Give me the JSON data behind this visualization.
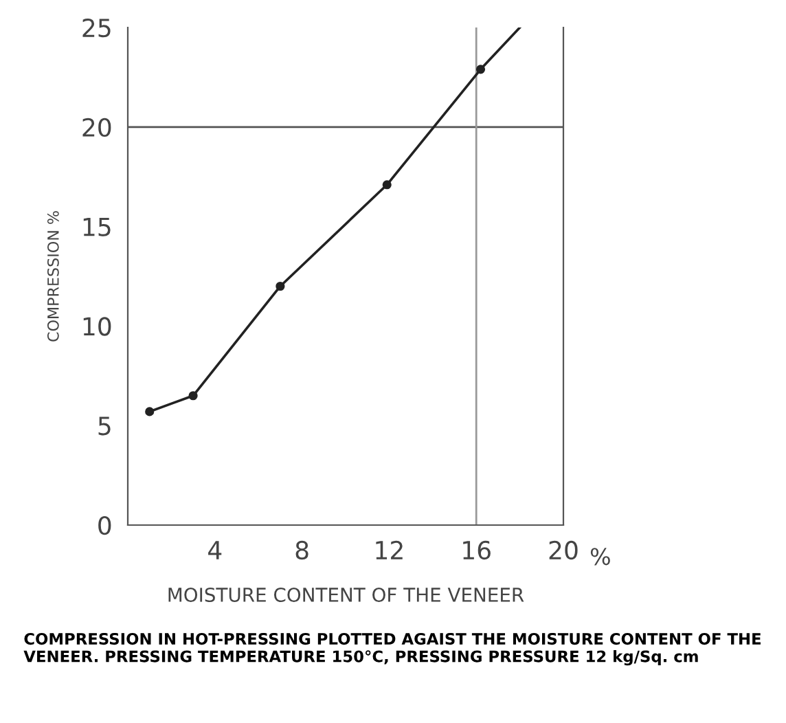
{
  "chart_data": {
    "type": "line",
    "xlabel": "MOISTURE CONTENT OF THE VENEER",
    "ylabel": "COMPRESSION %",
    "annotations": [
      "%",
      "COMPRESSION IN HOT-PRESSING PLOTTED AGAIST THE MOISTURE CONTENT OF THE VENEER. PRESSING TEMPERATURE 150°C, PRESSING PRESSURE 12 kg/Sq. cm"
    ],
    "series": [
      {
        "color": "#222222",
        "x": [
          1,
          3,
          7,
          11.9,
          16.2,
          18
        ],
        "values": [
          5.7,
          6.5,
          12,
          17.1,
          22.9,
          25
        ],
        "marker": "none"
      },
      {
        "type": "scatter",
        "color": "#222222",
        "x": [
          1,
          3,
          7,
          11.9,
          16.2
        ],
        "values": [
          5.7,
          6.5,
          12,
          17.1,
          22.9
        ],
        "marker": "circle"
      }
    ],
    "ref_lines": [
      {
        "axis": "y",
        "value": 20,
        "color": "#555555"
      },
      {
        "axis": "x",
        "value": 16,
        "color": "#999999"
      }
    ],
    "xlim": [
      0,
      20
    ],
    "ylim": [
      0,
      25
    ],
    "xticks": [
      4,
      8,
      12,
      16,
      20
    ],
    "yticks": [
      0,
      5,
      10,
      15,
      20,
      25
    ],
    "grid": false,
    "legend": false
  }
}
